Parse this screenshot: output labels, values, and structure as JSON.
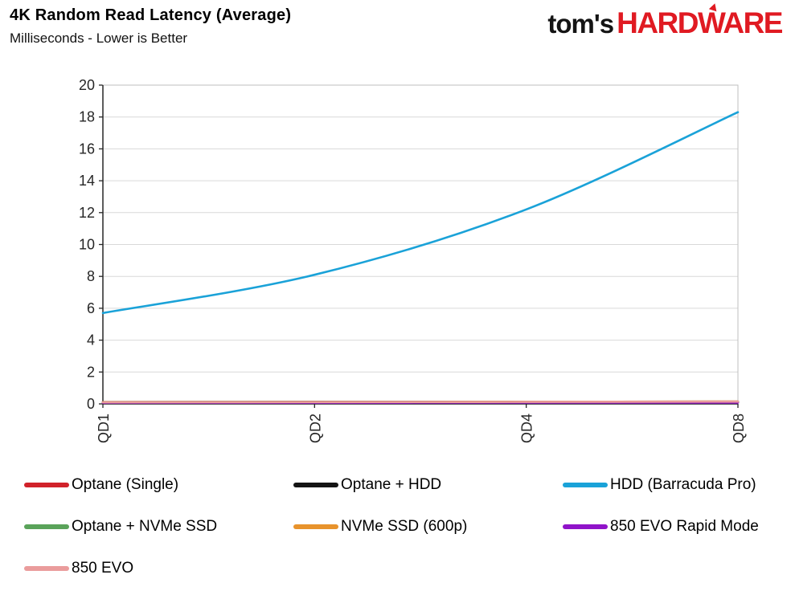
{
  "header": {
    "title": "4K Random Read Latency (Average)",
    "subtitle": "Milliseconds - Lower is Better"
  },
  "logo": {
    "prefix": "tom's",
    "suffix": "HARDWARE",
    "brand_red": "#e01a22"
  },
  "chart_data": {
    "type": "line",
    "title": "4K Random Read Latency (Average)",
    "xlabel": "",
    "ylabel": "Milliseconds",
    "categories": [
      "QD1",
      "QD2",
      "QD4",
      "QD8"
    ],
    "x_scale": "log2-equal-spacing",
    "ylim": [
      0,
      20
    ],
    "ytick_step": 2,
    "yticks": [
      0,
      2,
      4,
      6,
      8,
      10,
      12,
      14,
      16,
      18,
      20
    ],
    "grid": true,
    "legend_position": "bottom",
    "colors": {
      "grid": "#d9d9d9",
      "border": "#bfbfbf",
      "axis": "#262626",
      "text": "#262626"
    },
    "series": [
      {
        "name": "Optane (Single)",
        "color": "#d1222a",
        "values": [
          0.1,
          0.1,
          0.11,
          0.12
        ]
      },
      {
        "name": "Optane + HDD",
        "color": "#141414",
        "values": [
          0.12,
          0.13,
          0.13,
          0.14
        ]
      },
      {
        "name": "HDD (Barracuda Pro)",
        "color": "#1aa2d8",
        "values": [
          5.7,
          8.1,
          12.2,
          18.3
        ]
      },
      {
        "name": "Optane + NVMe SSD",
        "color": "#5aa35a",
        "values": [
          0.09,
          0.09,
          0.1,
          0.1
        ]
      },
      {
        "name": "NVMe SSD (600p)",
        "color": "#e8932c",
        "values": [
          0.11,
          0.12,
          0.13,
          0.15
        ]
      },
      {
        "name": "850 EVO Rapid Mode",
        "color": "#9013c9",
        "values": [
          0.07,
          0.07,
          0.08,
          0.08
        ]
      },
      {
        "name": "850 EVO",
        "color": "#ea9c9c",
        "values": [
          0.1,
          0.11,
          0.12,
          0.14
        ]
      }
    ]
  }
}
